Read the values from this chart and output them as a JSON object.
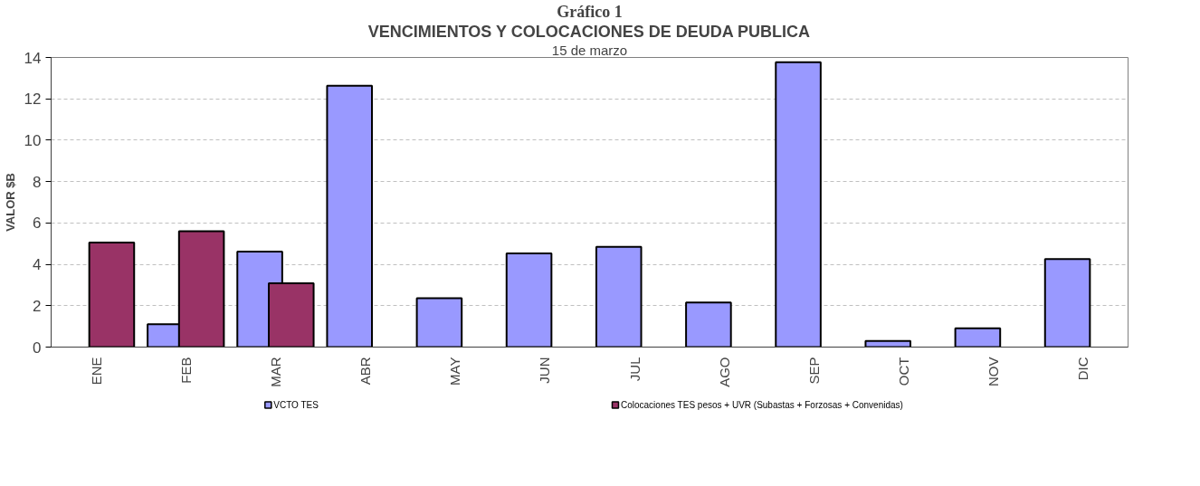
{
  "chart_data": {
    "type": "bar",
    "title": "VENCIMIENTOS Y COLOCACIONES DE DEUDA PUBLICA",
    "subtitle": "15 de marzo",
    "annotations": [
      "Gráfico 1"
    ],
    "ylabel": "VALOR $B",
    "categories": [
      "ENE",
      "FEB",
      "MAR",
      "ABR",
      "MAY",
      "JUN",
      "JUL",
      "AGO",
      "SEP",
      "OCT",
      "NOV",
      "DIC"
    ],
    "series": [
      {
        "name": "VCTO TES",
        "color": "#9999ff",
        "values": [
          null,
          1.1,
          4.62,
          12.63,
          2.36,
          4.53,
          4.84,
          2.15,
          13.77,
          0.29,
          0.91,
          4.25
        ]
      },
      {
        "name": "Colocaciones TES pesos + UVR (Subastas + Forzosas + Convenidas)",
        "color": "#993366",
        "values": [
          5.05,
          5.6,
          3.08,
          null,
          null,
          null,
          null,
          null,
          null,
          null,
          null,
          null
        ]
      }
    ],
    "ylim": [
      0,
      14
    ],
    "yticks": [
      0,
      2,
      4,
      6,
      8,
      10,
      12,
      14
    ],
    "grid": "y",
    "legend": "bottom"
  }
}
